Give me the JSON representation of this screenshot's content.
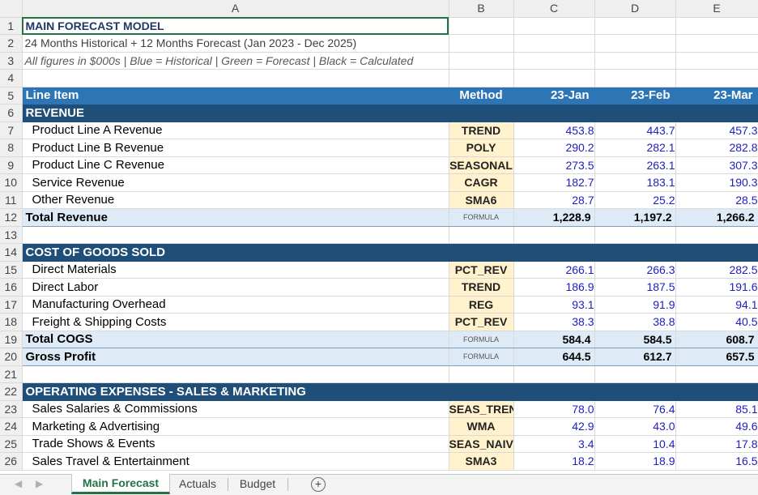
{
  "columns": [
    "A",
    "B",
    "C",
    "D",
    "E"
  ],
  "rows": {
    "r1": {
      "n": "1",
      "title": "MAIN FORECAST MODEL"
    },
    "r2": {
      "n": "2",
      "text": "24 Months Historical + 12 Months Forecast (Jan 2023 - Dec 2025)"
    },
    "r3": {
      "n": "3",
      "text": "All figures in $000s | Blue = Historical | Green = Forecast | Black = Calculated"
    },
    "r5": {
      "n": "5",
      "a": "Line Item",
      "b": "Method",
      "c": "23-Jan",
      "d": "23-Feb",
      "e": "23-Mar"
    },
    "r6": {
      "n": "6",
      "a": "REVENUE"
    },
    "r7": {
      "n": "7",
      "a": "Product Line A Revenue",
      "b": "TREND",
      "c": "453.8",
      "d": "443.7",
      "e": "457.3"
    },
    "r8": {
      "n": "8",
      "a": "Product Line B Revenue",
      "b": "POLY",
      "c": "290.2",
      "d": "282.1",
      "e": "282.8"
    },
    "r9": {
      "n": "9",
      "a": "Product Line C Revenue",
      "b": "SEASONAL",
      "c": "273.5",
      "d": "263.1",
      "e": "307.3"
    },
    "r10": {
      "n": "10",
      "a": "Service Revenue",
      "b": "CAGR",
      "c": "182.7",
      "d": "183.1",
      "e": "190.3"
    },
    "r11": {
      "n": "11",
      "a": "Other Revenue",
      "b": "SMA6",
      "c": "28.7",
      "d": "25.2",
      "e": "28.5"
    },
    "r12": {
      "n": "12",
      "a": "Total Revenue",
      "b": "FORMULA",
      "c": "1,228.9",
      "d": "1,197.2",
      "e": "1,266.2"
    },
    "r13": {
      "n": "13"
    },
    "r14": {
      "n": "14",
      "a": "COST OF GOODS SOLD"
    },
    "r15": {
      "n": "15",
      "a": "Direct Materials",
      "b": "PCT_REV",
      "c": "266.1",
      "d": "266.3",
      "e": "282.5"
    },
    "r16": {
      "n": "16",
      "a": "Direct Labor",
      "b": "TREND",
      "c": "186.9",
      "d": "187.5",
      "e": "191.6"
    },
    "r17": {
      "n": "17",
      "a": "Manufacturing Overhead",
      "b": "REG",
      "c": "93.1",
      "d": "91.9",
      "e": "94.1"
    },
    "r18": {
      "n": "18",
      "a": "Freight & Shipping Costs",
      "b": "PCT_REV",
      "c": "38.3",
      "d": "38.8",
      "e": "40.5"
    },
    "r19": {
      "n": "19",
      "a": "Total COGS",
      "b": "FORMULA",
      "c": "584.4",
      "d": "584.5",
      "e": "608.7"
    },
    "r20": {
      "n": "20",
      "a": "Gross Profit",
      "b": "FORMULA",
      "c": "644.5",
      "d": "612.7",
      "e": "657.5"
    },
    "r21": {
      "n": "21"
    },
    "r22": {
      "n": "22",
      "a": "OPERATING EXPENSES - SALES & MARKETING"
    },
    "r23": {
      "n": "23",
      "a": "Sales Salaries & Commissions",
      "b": "SEAS_TREND",
      "c": "78.0",
      "d": "76.4",
      "e": "85.1"
    },
    "r24": {
      "n": "24",
      "a": "Marketing & Advertising",
      "b": "WMA",
      "c": "42.9",
      "d": "43.0",
      "e": "49.6"
    },
    "r25": {
      "n": "25",
      "a": "Trade Shows & Events",
      "b": "SEAS_NAIVE",
      "c": "3.4",
      "d": "10.4",
      "e": "17.8"
    },
    "r26": {
      "n": "26",
      "a": "Sales Travel & Entertainment",
      "b": "SMA3",
      "c": "18.2",
      "d": "18.9",
      "e": "16.5"
    }
  },
  "tabs": {
    "t1": "Main Forecast",
    "t2": "Actuals",
    "t3": "Budget",
    "add": "+"
  },
  "colors": {
    "header_blue": "#2e75b6",
    "section_navy": "#1f4e79",
    "method_fill": "#fff2cc",
    "total_fill": "#deebf7",
    "historical_text": "#2020c0",
    "active_tab": "#217346"
  }
}
